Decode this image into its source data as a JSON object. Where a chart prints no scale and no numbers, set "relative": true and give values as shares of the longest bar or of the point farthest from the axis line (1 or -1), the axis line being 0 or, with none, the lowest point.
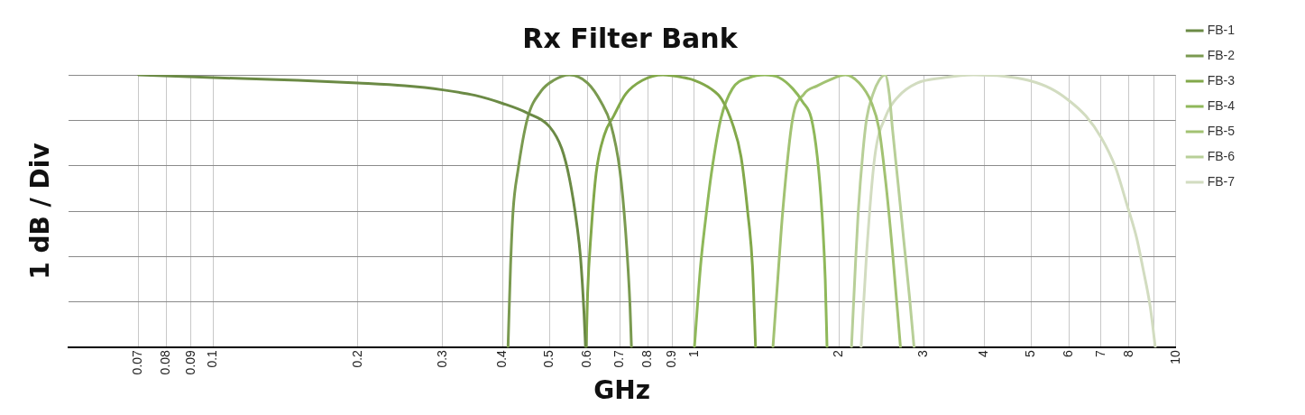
{
  "chart_data": {
    "type": "line",
    "title": "Rx Filter Bank",
    "xlabel": "GHz",
    "ylabel": "1 dB / Div",
    "relative": true,
    "log": "x",
    "grid": true,
    "legend": "right",
    "marker": "none",
    "line_style": "solid",
    "xlim": [
      0.05,
      10
    ],
    "xticks": [
      0.07,
      0.08,
      0.09,
      0.1,
      0.2,
      0.3,
      0.4,
      0.5,
      0.6,
      0.7,
      0.8,
      0.9,
      1,
      2,
      3,
      4,
      5,
      6,
      7,
      8,
      {
        "value": 9,
        "label": null
      },
      10
    ],
    "series": [
      {
        "name": "FB-1",
        "color": "#6b8a45",
        "x": [
          0.07,
          0.1,
          0.15,
          0.2,
          0.25,
          0.3,
          0.35,
          0.4,
          0.45,
          0.5,
          0.53,
          0.55,
          0.57,
          0.58,
          0.59,
          0.594
        ],
        "values": [
          1,
          0.99,
          0.98,
          0.97,
          0.96,
          0.945,
          0.925,
          0.895,
          0.86,
          0.81,
          0.73,
          0.62,
          0.45,
          0.33,
          0.12,
          0
        ]
      },
      {
        "name": "FB-2",
        "color": "#7a9a50",
        "x": [
          0.41,
          0.415,
          0.42,
          0.43,
          0.45,
          0.48,
          0.51,
          0.55,
          0.6,
          0.64,
          0.67,
          0.7,
          0.72,
          0.735,
          0.74
        ],
        "values": [
          0,
          0.3,
          0.5,
          0.65,
          0.84,
          0.94,
          0.98,
          1,
          0.97,
          0.9,
          0.82,
          0.65,
          0.42,
          0.15,
          0
        ]
      },
      {
        "name": "FB-3",
        "color": "#82a84a",
        "x": [
          0.596,
          0.6,
          0.61,
          0.625,
          0.65,
          0.68,
          0.72,
          0.78,
          0.86,
          0.95,
          1.0,
          1.08,
          1.14,
          1.2,
          1.25,
          1.29,
          1.32,
          1.34
        ],
        "values": [
          0,
          0.2,
          0.42,
          0.64,
          0.78,
          0.85,
          0.93,
          0.98,
          1,
          0.99,
          0.98,
          0.95,
          0.91,
          0.82,
          0.7,
          0.5,
          0.3,
          0
        ]
      },
      {
        "name": "FB-4",
        "color": "#8fb85a",
        "x": [
          1.0,
          1.03,
          1.06,
          1.085,
          1.135,
          1.2,
          1.3,
          1.4,
          1.5,
          1.6,
          1.68,
          1.75,
          1.8,
          1.84,
          1.87,
          1.886
        ],
        "values": [
          0,
          0.3,
          0.5,
          0.64,
          0.84,
          0.95,
          0.99,
          1,
          0.99,
          0.95,
          0.9,
          0.84,
          0.7,
          0.5,
          0.25,
          0
        ]
      },
      {
        "name": "FB-5",
        "color": "#a2c272",
        "x": [
          1.456,
          1.49,
          1.526,
          1.6,
          1.69,
          1.8,
          1.9,
          2.06,
          2.2,
          2.33,
          2.42,
          2.5,
          2.58,
          2.68
        ],
        "values": [
          0,
          0.25,
          0.5,
          0.84,
          0.93,
          0.96,
          0.98,
          1,
          0.97,
          0.9,
          0.8,
          0.6,
          0.35,
          0
        ]
      },
      {
        "name": "FB-6",
        "color": "#b8cf98",
        "x": [
          2.12,
          2.16,
          2.19,
          2.24,
          2.28,
          2.35,
          2.42,
          2.49,
          2.54,
          2.58,
          2.65,
          2.72,
          2.8,
          2.86
        ],
        "values": [
          0,
          0.3,
          0.5,
          0.72,
          0.84,
          0.93,
          0.98,
          1,
          0.93,
          0.8,
          0.6,
          0.4,
          0.18,
          0
        ]
      },
      {
        "name": "FB-7",
        "color": "#d2dcc0",
        "x": [
          2.22,
          2.28,
          2.37,
          2.5,
          2.65,
          2.9,
          3.3,
          3.8,
          4.4,
          4.94,
          5.5,
          5.96,
          6.5,
          7.0,
          7.5,
          7.9,
          8.3,
          8.55,
          8.85,
          9.07
        ],
        "values": [
          0,
          0.35,
          0.7,
          0.85,
          0.92,
          0.97,
          0.99,
          1,
          0.995,
          0.98,
          0.95,
          0.91,
          0.85,
          0.77,
          0.66,
          0.53,
          0.4,
          0.29,
          0.15,
          0
        ]
      }
    ]
  }
}
